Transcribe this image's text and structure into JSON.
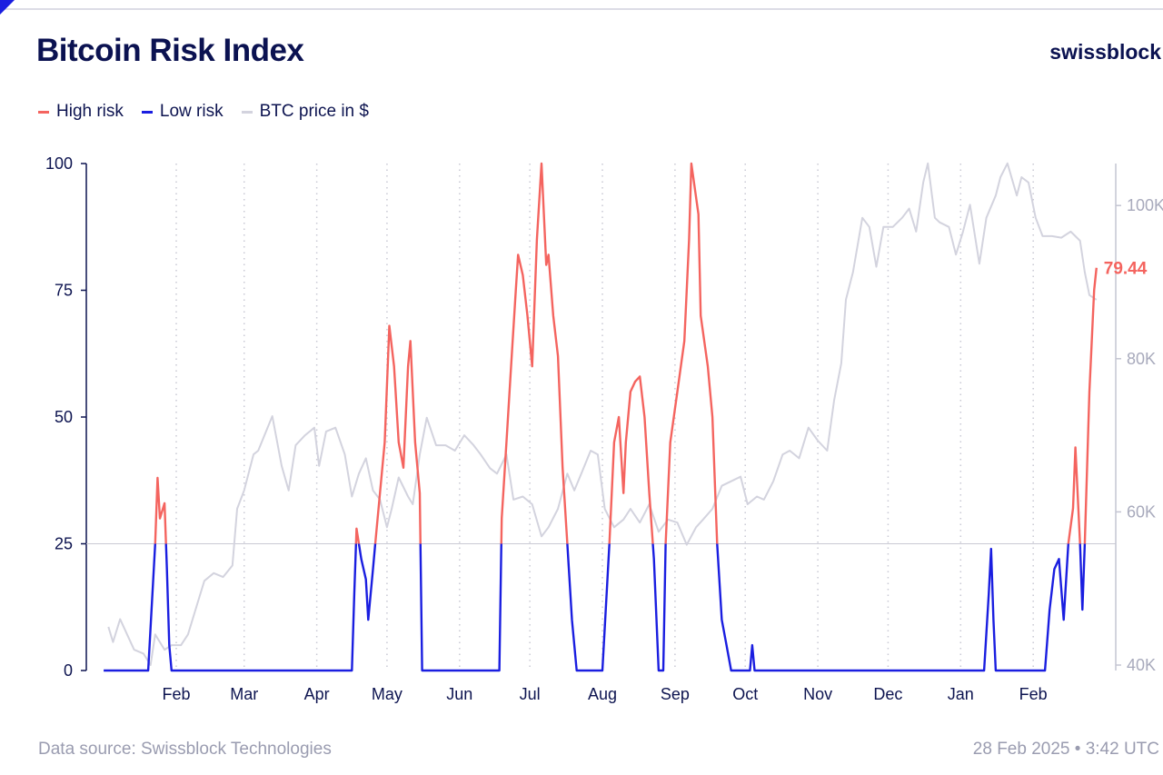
{
  "header": {
    "title": "Bitcoin Risk Index",
    "brand": "swissblock"
  },
  "legend": [
    {
      "label": "High risk",
      "color": "#f4645f"
    },
    {
      "label": "Low risk",
      "color": "#1a1ee0"
    },
    {
      "label": "BTC price in $",
      "color": "#d3d3de"
    }
  ],
  "footer": {
    "source": "Data source: Swissblock Technologies",
    "timestamp": "28 Feb 2025 • 3:42 UTC"
  },
  "chart_data": {
    "type": "line",
    "title": "Bitcoin Risk Index",
    "x_unit": "days since 2024-01-01",
    "xlim": [
      0,
      424
    ],
    "x_ticks": [
      {
        "label": "Feb",
        "day": 31
      },
      {
        "label": "Mar",
        "day": 60
      },
      {
        "label": "Apr",
        "day": 91
      },
      {
        "label": "May",
        "day": 121
      },
      {
        "label": "Jun",
        "day": 152
      },
      {
        "label": "Jul",
        "day": 182
      },
      {
        "label": "Aug",
        "day": 213
      },
      {
        "label": "Sep",
        "day": 244
      },
      {
        "label": "Oct",
        "day": 274
      },
      {
        "label": "Nov",
        "day": 305
      },
      {
        "label": "Dec",
        "day": 335
      },
      {
        "label": "Jan",
        "day": 366
      },
      {
        "label": "Feb",
        "day": 397
      }
    ],
    "y_left": {
      "ylim": [
        0,
        100
      ],
      "ticks": [
        "0",
        "25",
        "50",
        "75",
        "100"
      ],
      "tick_values": [
        0,
        25,
        50,
        75,
        100
      ]
    },
    "y_right": {
      "ylim": [
        34,
        106
      ],
      "ticks": [
        "40K",
        "60K",
        "80K",
        "100K"
      ],
      "tick_values": [
        40,
        60,
        80,
        100
      ],
      "unit": "thousand USD"
    },
    "threshold": 25,
    "last_value_label": "79.44",
    "risk_series": {
      "name": "Risk index",
      "x": [
        0,
        19,
        22,
        23,
        24,
        26,
        27,
        28,
        29,
        106,
        107,
        108,
        110,
        112,
        113,
        115,
        116,
        118,
        120,
        122,
        124,
        126,
        128,
        130,
        131,
        133,
        135,
        136,
        169,
        170,
        172,
        174,
        176,
        177,
        179,
        181,
        183,
        185,
        187,
        189,
        190,
        192,
        194,
        196,
        198,
        200,
        202,
        213,
        216,
        218,
        220,
        222,
        223,
        225,
        227,
        229,
        231,
        233,
        235,
        237,
        239,
        240,
        242,
        245,
        248,
        250,
        251,
        254,
        255,
        258,
        260,
        262,
        264,
        266,
        268,
        276,
        277,
        278,
        376,
        378,
        379,
        380,
        381,
        402,
        404,
        406,
        408,
        410,
        412,
        414,
        415,
        417,
        418,
        419,
        421,
        423,
        424
      ],
      "y": [
        0,
        0,
        25,
        38,
        30,
        33,
        20,
        5,
        0,
        0,
        15,
        28,
        22,
        18,
        10,
        20,
        25,
        35,
        45,
        68,
        60,
        45,
        40,
        60,
        65,
        45,
        35,
        0,
        0,
        30,
        45,
        60,
        75,
        82,
        78,
        70,
        60,
        85,
        100,
        80,
        82,
        70,
        62,
        40,
        25,
        10,
        0,
        0,
        25,
        45,
        50,
        35,
        45,
        55,
        57,
        58,
        50,
        35,
        22,
        0,
        0,
        25,
        45,
        55,
        65,
        85,
        100,
        90,
        70,
        60,
        50,
        25,
        10,
        5,
        0,
        0,
        5,
        0,
        0,
        15,
        24,
        10,
        0,
        0,
        12,
        20,
        22,
        10,
        25,
        32,
        44,
        25,
        12,
        25,
        55,
        75,
        79.44
      ]
    },
    "price_series": {
      "name": "BTC price in $ (K)",
      "x": [
        2,
        4,
        7,
        10,
        13,
        17,
        20,
        22,
        26,
        29,
        33,
        36,
        39,
        43,
        47,
        51,
        55,
        57,
        60,
        64,
        66,
        70,
        72,
        76,
        79,
        82,
        86,
        90,
        92,
        95,
        99,
        103,
        106,
        109,
        112,
        115,
        118,
        121,
        123,
        126,
        130,
        132,
        135,
        138,
        142,
        146,
        150,
        154,
        158,
        161,
        165,
        168,
        172,
        175,
        179,
        183,
        187,
        190,
        194,
        198,
        201,
        204,
        208,
        211,
        214,
        218,
        222,
        225,
        229,
        233,
        237,
        241,
        245,
        249,
        253,
        256,
        260,
        264,
        268,
        272,
        275,
        279,
        282,
        286,
        290,
        293,
        297,
        301,
        305,
        309,
        312,
        315,
        317,
        320,
        324,
        327,
        330,
        333,
        337,
        341,
        344,
        347,
        350,
        352,
        355,
        357,
        361,
        364,
        367,
        370,
        374,
        377,
        381,
        383,
        386,
        390,
        392,
        395,
        398,
        401,
        405,
        409,
        413,
        417,
        419,
        421,
        424
      ],
      "y": [
        45,
        43,
        46,
        44,
        42,
        41.5,
        40,
        44,
        42,
        42.6,
        42.6,
        44,
        47,
        51,
        52,
        51.5,
        53,
        60.4,
        62.8,
        67.5,
        68,
        71,
        72.5,
        66,
        62.8,
        68.7,
        70,
        71,
        66,
        70.5,
        71,
        67.5,
        62,
        65,
        67,
        62.8,
        61.6,
        58,
        60.4,
        64.5,
        62,
        61,
        67.5,
        72.3,
        68.7,
        68.7,
        68,
        70,
        68.7,
        67.5,
        65.7,
        65,
        67.5,
        61.6,
        62,
        61,
        56.8,
        58,
        60.4,
        65,
        62.8,
        65,
        68,
        67.5,
        60.4,
        58,
        59,
        60.4,
        58.6,
        61,
        57.4,
        59,
        58.6,
        55.7,
        58,
        59,
        60.4,
        63.4,
        64,
        64.6,
        61,
        62,
        61.6,
        64,
        67.5,
        68,
        67,
        71,
        69.3,
        68,
        74.6,
        79.4,
        87.7,
        91.3,
        98.4,
        97.2,
        92,
        97.2,
        97.2,
        98.4,
        99.6,
        96.6,
        103,
        105.5,
        98.4,
        97.8,
        97.2,
        93.6,
        96.6,
        100.1,
        92.4,
        98.4,
        101.3,
        103.7,
        105.5,
        101.3,
        103.7,
        103,
        98.4,
        96,
        96,
        95.8,
        96.6,
        95.4,
        91.3,
        88.3,
        87.7
      ]
    },
    "colors": {
      "high": "#f4645f",
      "low": "#1a1ee0",
      "price": "#d3d3de",
      "axis": "#0d1450",
      "right_axis": "#c4c5d2",
      "grid": "#c9c9d4"
    }
  }
}
